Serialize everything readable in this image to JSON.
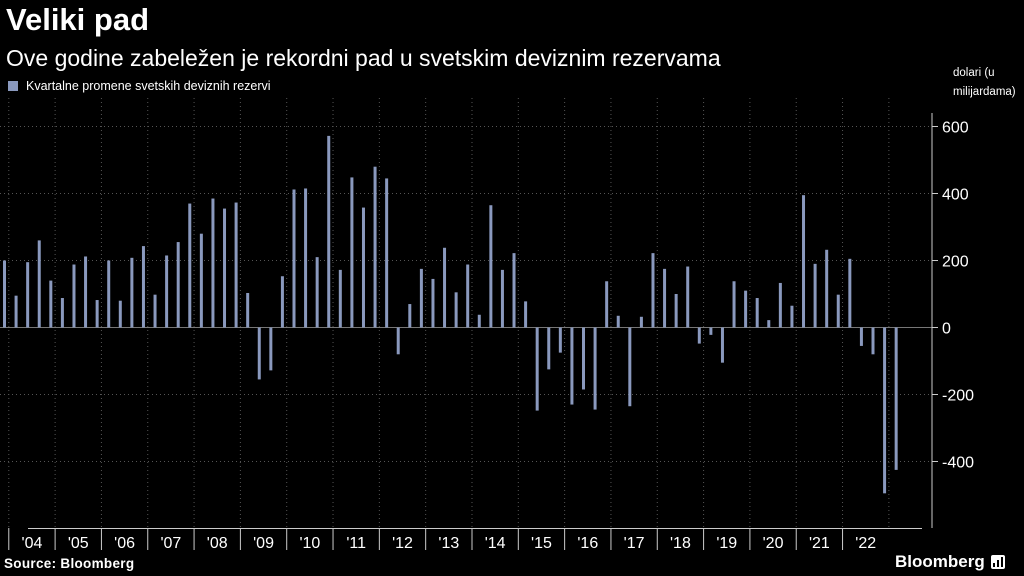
{
  "header": {
    "title": "Veliki pad",
    "subtitle": "Ove godine zabeležen je rekordni pad u svetskim deviznim rezervama"
  },
  "legend": {
    "label": "Kvartalne promene svetskih deviznih rezervi"
  },
  "unit_label": "dolari (u milijardama)",
  "footer": {
    "source": "Source: Bloomberg",
    "brand": "Bloomberg",
    "brand_icon": "bloomberg-terminal-icon"
  },
  "colors": {
    "background": "#000000",
    "bar": "#8a99be",
    "grid": "#555555",
    "text": "#ffffff"
  },
  "chart_data": {
    "type": "bar",
    "title": "Veliki pad",
    "subtitle": "Ove godine zabeležen je rekordni pad u svetskim deviznim rezervama",
    "ylabel": "dolari (u milijardama)",
    "ylim": [
      -580,
      660
    ],
    "yticks": [
      600,
      400,
      200,
      0,
      -200,
      -400
    ],
    "ytick_labels": [
      "600",
      "400",
      "200",
      "0",
      "-200",
      "-400"
    ],
    "grid": true,
    "legend_position": "top-left",
    "x_start": "2003 Q4",
    "year_labels": [
      "'04",
      "'05",
      "'06",
      "'07",
      "'08",
      "'09",
      "'10",
      "'11",
      "'12",
      "'13",
      "'14",
      "'15",
      "'16",
      "'17",
      "'18",
      "'19",
      "'20",
      "'21",
      "'22"
    ],
    "series": [
      {
        "name": "Kvartalne promene svetskih deviznih rezervi",
        "values": [
          200,
          95,
          195,
          260,
          140,
          88,
          188,
          212,
          82,
          200,
          80,
          208,
          243,
          98,
          215,
          255,
          370,
          280,
          385,
          355,
          373,
          103,
          -155,
          -128,
          153,
          412,
          415,
          210,
          572,
          172,
          448,
          358,
          480,
          445,
          -80,
          70,
          175,
          145,
          238,
          105,
          188,
          38,
          365,
          172,
          222,
          78,
          -248,
          -125,
          -75,
          -230,
          -185,
          -245,
          138,
          35,
          -235,
          32,
          222,
          175,
          100,
          182,
          -48,
          -22,
          -105,
          138,
          110,
          88,
          22,
          133,
          65,
          395,
          190,
          232,
          98,
          205,
          -55,
          -80,
          -495,
          -425
        ]
      }
    ]
  }
}
